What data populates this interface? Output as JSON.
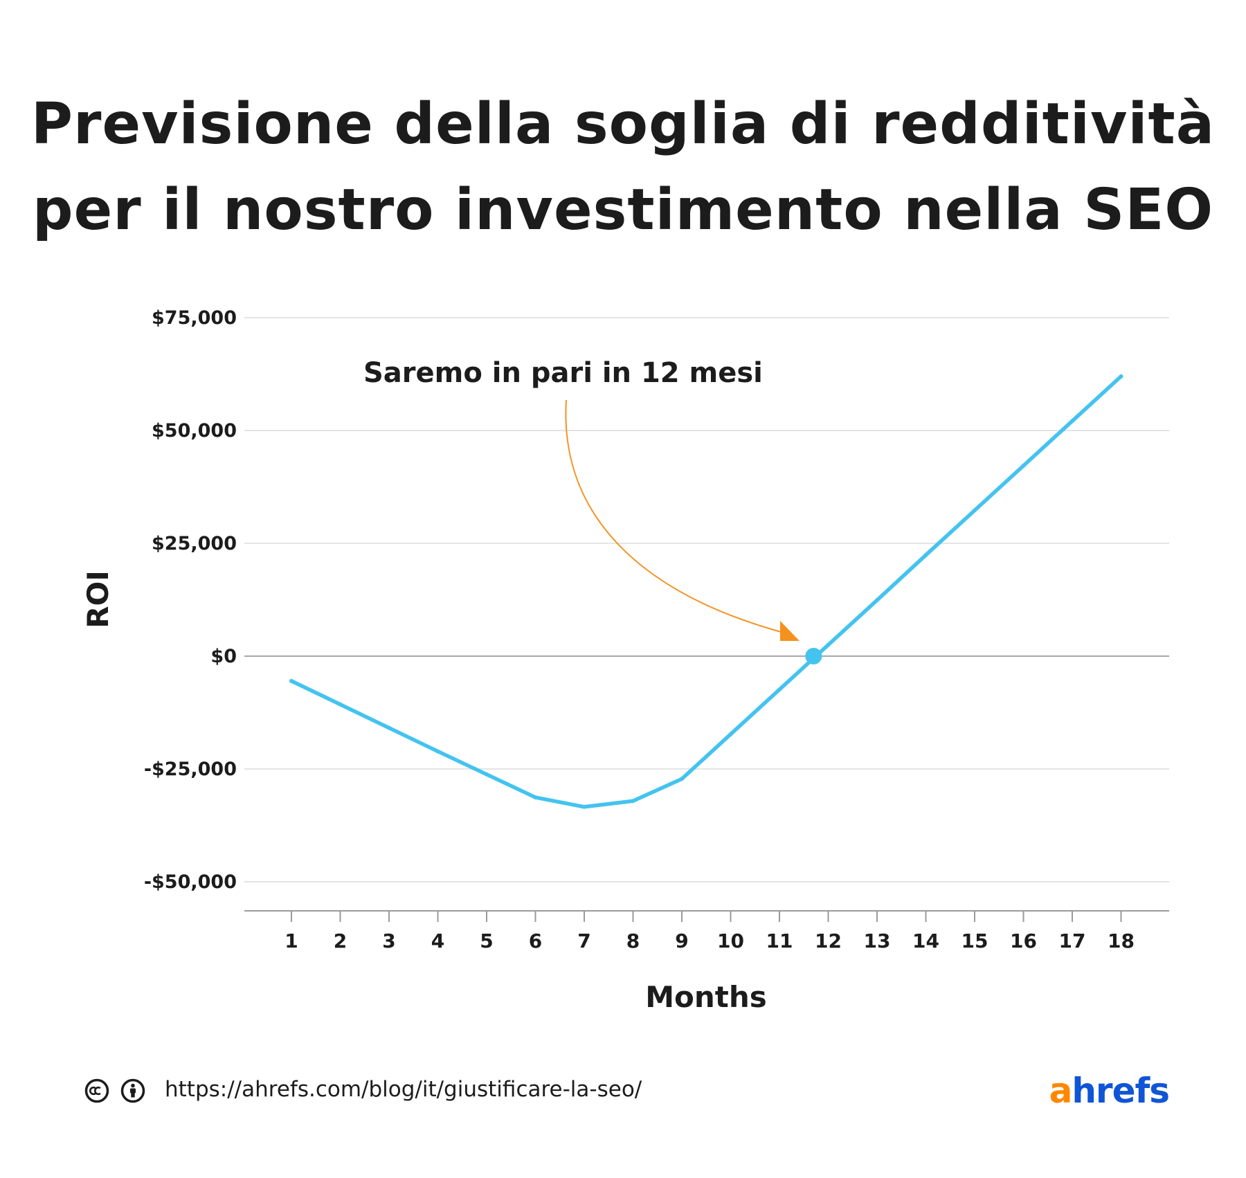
{
  "title": {
    "line1": "Previsione della soglia di redditività",
    "line2": "per il nostro investimento nella SEO"
  },
  "colors": {
    "line": "#44c3ef",
    "annotation": "#f5911e",
    "grid": "#dcdcdc",
    "zero_line": "#8a8a8a",
    "text": "#1c1c1c",
    "logo_a": "#ff8800",
    "logo_rest": "#0f55d6"
  },
  "chart_data": {
    "type": "line",
    "ylabel": "ROI",
    "xlabel": "Months",
    "ylim": [
      -50000,
      75000
    ],
    "yticks": [
      75000,
      50000,
      25000,
      0,
      -25000,
      -50000
    ],
    "ytick_labels": [
      "$75,000",
      "$50,000",
      "$25,000",
      "$0",
      "-$25,000",
      "-$50,000"
    ],
    "x": [
      1,
      2,
      3,
      4,
      5,
      6,
      7,
      8,
      9,
      10,
      11,
      12,
      13,
      14,
      15,
      16,
      17,
      18
    ],
    "xtick_labels": [
      "1",
      "2",
      "3",
      "4",
      "5",
      "6",
      "7",
      "8",
      "9",
      "10",
      "11",
      "12",
      "13",
      "14",
      "15",
      "16",
      "17",
      "18"
    ],
    "series": [
      {
        "x": [
          1,
          2,
          3,
          4,
          5,
          6,
          7,
          8,
          9,
          10,
          11,
          12,
          13,
          14,
          15,
          16,
          17,
          18
        ],
        "values": [
          -5500,
          -10700,
          -15900,
          -21100,
          -26200,
          -31300,
          -33400,
          -32100,
          -27200,
          -17300,
          -7400,
          2500,
          12400,
          22400,
          32300,
          42200,
          52100,
          62000
        ]
      }
    ],
    "breakeven_point": {
      "x": 11.7,
      "y": 0
    },
    "annotation": {
      "text": "Saremo in pari in 12 mesi"
    },
    "grid": true,
    "legend": "none"
  },
  "footer": {
    "url": "https://ahrefs.com/blog/it/giustificare-la-seo/",
    "license_icons": [
      "creative-commons-icon",
      "attribution-person-icon"
    ],
    "logo": {
      "a": "a",
      "rest": "hrefs"
    }
  }
}
